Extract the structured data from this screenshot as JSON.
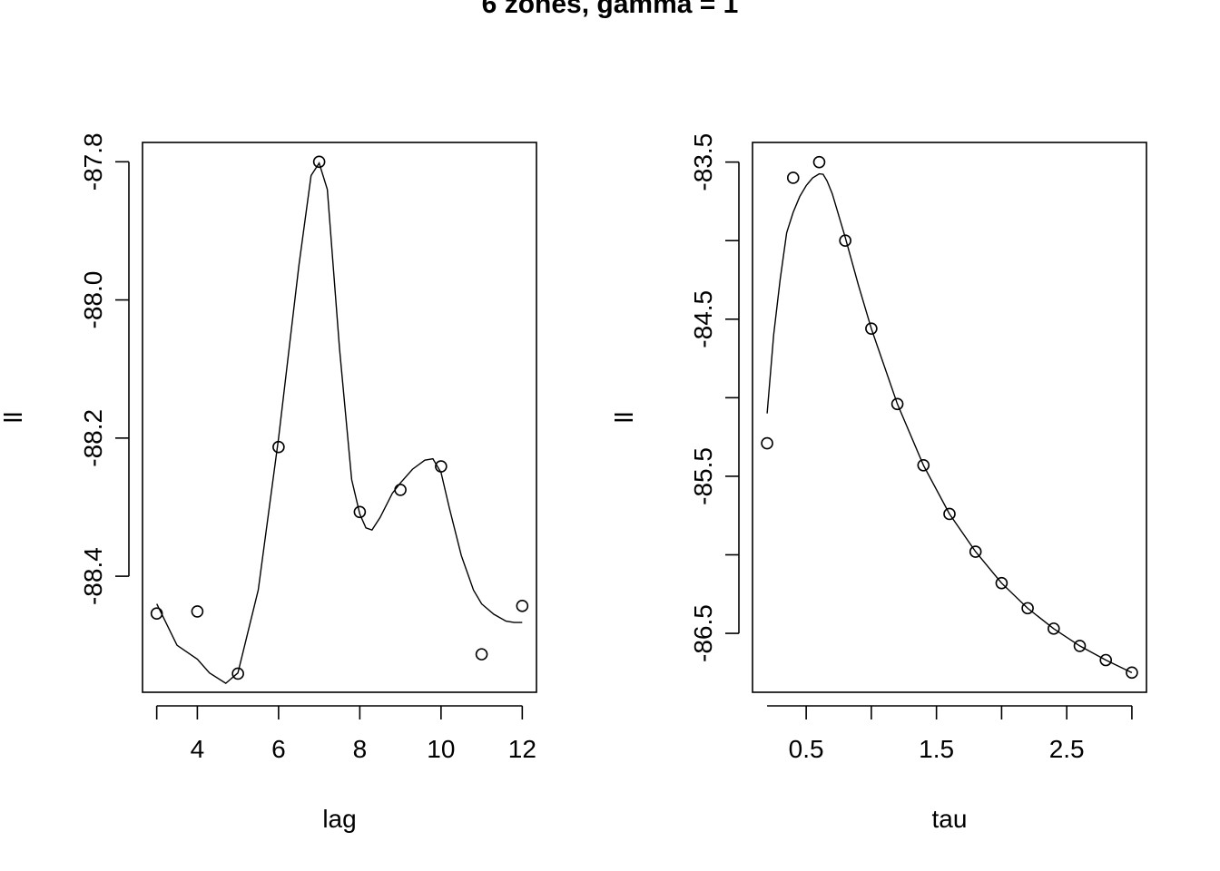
{
  "title": "6 zones, gamma = 1",
  "chart_data": [
    {
      "type": "scatter",
      "xlabel": "lag",
      "ylabel": "ll",
      "xlim": [
        2.65,
        12.35
      ],
      "ylim": [
        -88.568,
        -87.772
      ],
      "x_ticks": [
        4,
        6,
        8,
        10,
        12
      ],
      "x_tick_labels": [
        "4",
        "6",
        "8",
        "10",
        "12"
      ],
      "y_ticks": [
        -87.8,
        -88.0,
        -88.2,
        -88.4
      ],
      "y_tick_labels": [
        "-87.8",
        "-88.0",
        "-88.2",
        "-88.4"
      ],
      "points": {
        "x": [
          3,
          4,
          5,
          6,
          7,
          8,
          9,
          10,
          11,
          12
        ],
        "y": [
          -88.454,
          -88.451,
          -88.541,
          -88.213,
          -87.8,
          -88.307,
          -88.275,
          -88.241,
          -88.513,
          -88.443
        ]
      },
      "smooth_line": {
        "x": [
          3,
          3.5,
          4,
          4.3,
          4.7,
          5,
          5.5,
          6,
          6.5,
          6.8,
          7,
          7.2,
          7.5,
          7.8,
          8,
          8.15,
          8.3,
          8.5,
          8.8,
          9,
          9.3,
          9.6,
          9.8,
          10,
          10.2,
          10.5,
          10.8,
          11,
          11.3,
          11.6,
          11.8,
          12
        ],
        "y": [
          -88.44,
          -88.5,
          -88.52,
          -88.54,
          -88.555,
          -88.54,
          -88.42,
          -88.2,
          -87.95,
          -87.82,
          -87.802,
          -87.84,
          -88.07,
          -88.26,
          -88.31,
          -88.33,
          -88.333,
          -88.315,
          -88.28,
          -88.265,
          -88.245,
          -88.232,
          -88.23,
          -88.25,
          -88.3,
          -88.37,
          -88.42,
          -88.44,
          -88.455,
          -88.465,
          -88.467,
          -88.467
        ]
      }
    },
    {
      "type": "scatter",
      "xlabel": "tau",
      "ylabel": "ll",
      "xlim": [
        0.088,
        3.112
      ],
      "ylim": [
        -86.875,
        -83.375
      ],
      "x_ticks": [
        0.5,
        1.5,
        2.5
      ],
      "x_tick_labels": [
        "0.5",
        "1.5",
        "2.5"
      ],
      "x_minor_ticks": [
        1.0,
        2.0,
        3.0
      ],
      "y_ticks": [
        -83.5,
        -84.5,
        -85.5,
        -86.5
      ],
      "y_tick_labels": [
        "-83.5",
        "-84.5",
        "-85.5",
        "-86.5"
      ],
      "y_minor_ticks": [
        -84.0,
        -85.0,
        -86.0
      ],
      "points": {
        "x": [
          0.2,
          0.4,
          0.6,
          0.8,
          1.0,
          1.2,
          1.4,
          1.6,
          1.8,
          2.0,
          2.2,
          2.4,
          2.6,
          2.8,
          3.0
        ],
        "y": [
          -85.29,
          -83.6,
          -83.5,
          -84.0,
          -84.56,
          -85.04,
          -85.43,
          -85.74,
          -85.98,
          -86.18,
          -86.34,
          -86.47,
          -86.58,
          -86.67,
          -86.75
        ]
      },
      "smooth_line": {
        "x": [
          0.2,
          0.25,
          0.3,
          0.35,
          0.4,
          0.45,
          0.5,
          0.55,
          0.6,
          0.63,
          0.66,
          0.7,
          0.8,
          0.9,
          1.0,
          1.2,
          1.4,
          1.6,
          1.8,
          2.0,
          2.2,
          2.4,
          2.6,
          2.8,
          3.0
        ],
        "y": [
          -85.1,
          -84.6,
          -84.25,
          -83.95,
          -83.82,
          -83.72,
          -83.65,
          -83.6,
          -83.575,
          -83.578,
          -83.62,
          -83.7,
          -83.98,
          -84.28,
          -84.56,
          -85.04,
          -85.43,
          -85.74,
          -85.98,
          -86.18,
          -86.34,
          -86.47,
          -86.58,
          -86.67,
          -86.75
        ]
      }
    }
  ]
}
